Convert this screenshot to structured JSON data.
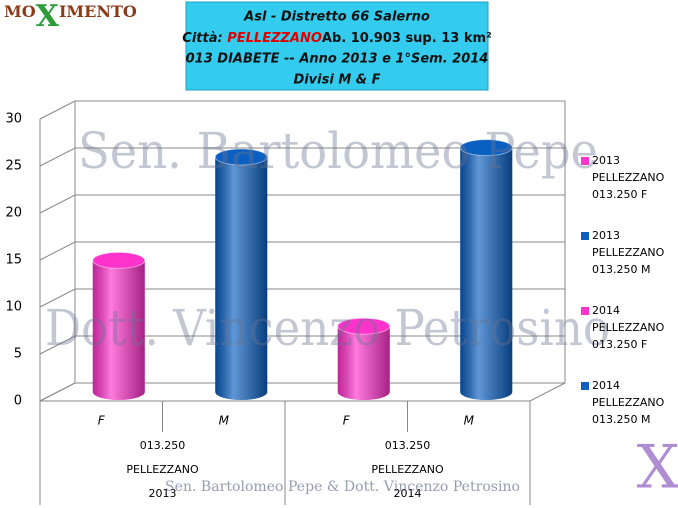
{
  "logo": [
    "MO",
    "X",
    "IMENTO"
  ],
  "title_box": {
    "line1": "Asl - Distretto 66 Salerno",
    "city_label": "Città:",
    "city": "PELLEZZANO",
    "city_info": "Ab. 10.903 sup. 13 km²",
    "line3": "013 DIABETE -- Anno 2013 e 1°Sem. 2014",
    "line4": "Divisi M & F"
  },
  "watermarks": [
    "Sen. Bartolomeo Pepe",
    "Dott. Vincenzo Petrosino"
  ],
  "footer": "Sen. Bartolomeo Pepe &  Dott. Vincenzo Petrosino",
  "corner_logo": "X",
  "chart_data": {
    "type": "bar3d",
    "categories": [
      "F",
      "M",
      "F",
      "M"
    ],
    "groups": [
      {
        "lines": [
          "013.250",
          "PELLEZZANO",
          "2013"
        ]
      },
      {
        "lines": [
          "013.250",
          "PELLEZZANO",
          "2014"
        ]
      }
    ],
    "series": [
      {
        "name": "2013 PELLEZZANO 013.250 F",
        "color": "#ff33cc",
        "values": [
          14,
          null,
          null,
          null
        ]
      },
      {
        "name": "2013 PELLEZZANO 013.250 M",
        "color": "#0b5fc0",
        "values": [
          null,
          25,
          null,
          null
        ]
      },
      {
        "name": "2014 PELLEZZANO 013.250 F",
        "color": "#ff33cc",
        "values": [
          null,
          null,
          7,
          null
        ]
      },
      {
        "name": "2014 PELLEZZANO 013.250 M",
        "color": "#0b5fc0",
        "values": [
          null,
          null,
          null,
          26
        ]
      }
    ],
    "ylim": [
      0,
      30
    ],
    "yticks": [
      0,
      5,
      10,
      15,
      20,
      25,
      30
    ],
    "grid": true,
    "legend": "right"
  }
}
